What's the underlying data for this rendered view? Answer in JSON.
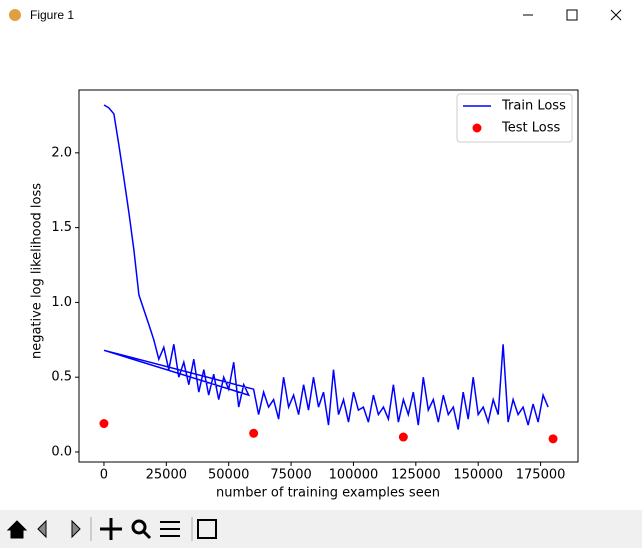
{
  "window": {
    "title": "Figure 1"
  },
  "chart_data": {
    "type": "line",
    "xlabel": "number of training examples seen",
    "ylabel": "negative log likelihood loss",
    "xlim": [
      -10000,
      190000
    ],
    "ylim": [
      -0.067,
      2.42
    ],
    "xticks": [
      0,
      25000,
      50000,
      75000,
      100000,
      125000,
      150000,
      175000
    ],
    "yticks": [
      {
        "value": 0,
        "label": "0.0"
      },
      0.5,
      {
        "value": 1,
        "label": "1.0"
      },
      1.5,
      {
        "value": 2,
        "label": "2.0"
      }
    ],
    "legend": "upper right",
    "series": [
      {
        "name": "Train Loss",
        "type": "line",
        "color": "#0000ff",
        "x": [
          0,
          2000,
          4000,
          6000,
          8000,
          10000,
          12000,
          14000,
          16000,
          18000,
          20000,
          22000,
          24000,
          26000,
          28000,
          30000,
          32000,
          34000,
          36000,
          38000,
          40000,
          42000,
          44000,
          46000,
          48000,
          50000,
          52000,
          54000,
          56000,
          58000,
          0,
          60000,
          62000,
          64000,
          66000,
          68000,
          70000,
          72000,
          74000,
          76000,
          78000,
          80000,
          82000,
          84000,
          86000,
          88000,
          90000,
          92000,
          94000,
          96000,
          98000,
          100000,
          102000,
          104000,
          106000,
          108000,
          110000,
          112000,
          114000,
          116000,
          118000,
          120000,
          122000,
          124000,
          126000,
          128000,
          130000,
          132000,
          134000,
          136000,
          138000,
          140000,
          142000,
          144000,
          146000,
          148000,
          150000,
          152000,
          154000,
          156000,
          158000,
          160000,
          162000,
          164000,
          166000,
          168000,
          170000,
          172000,
          174000,
          176000,
          178000
        ],
        "values": [
          2.32,
          2.3,
          2.26,
          2.05,
          1.83,
          1.6,
          1.35,
          1.05,
          0.95,
          0.85,
          0.75,
          0.62,
          0.7,
          0.55,
          0.72,
          0.5,
          0.6,
          0.45,
          0.62,
          0.4,
          0.55,
          0.38,
          0.52,
          0.35,
          0.5,
          0.42,
          0.6,
          0.3,
          0.45,
          0.38,
          0.68,
          0.42,
          0.25,
          0.4,
          0.3,
          0.35,
          0.22,
          0.5,
          0.3,
          0.38,
          0.25,
          0.45,
          0.28,
          0.5,
          0.3,
          0.4,
          0.18,
          0.55,
          0.25,
          0.35,
          0.2,
          0.4,
          0.28,
          0.3,
          0.2,
          0.38,
          0.25,
          0.3,
          0.22,
          0.45,
          0.2,
          0.35,
          0.25,
          0.4,
          0.18,
          0.5,
          0.28,
          0.35,
          0.2,
          0.38,
          0.25,
          0.3,
          0.15,
          0.4,
          0.22,
          0.5,
          0.25,
          0.3,
          0.2,
          0.35,
          0.25,
          0.72,
          0.2,
          0.35,
          0.25,
          0.3,
          0.18,
          0.32,
          0.2,
          0.38,
          0.3
        ]
      },
      {
        "name": "Test Loss",
        "type": "scatter",
        "color": "#ff0000",
        "x": [
          0,
          60000,
          120000,
          180000
        ],
        "values": [
          0.19,
          0.125,
          0.1,
          0.088
        ]
      }
    ]
  }
}
